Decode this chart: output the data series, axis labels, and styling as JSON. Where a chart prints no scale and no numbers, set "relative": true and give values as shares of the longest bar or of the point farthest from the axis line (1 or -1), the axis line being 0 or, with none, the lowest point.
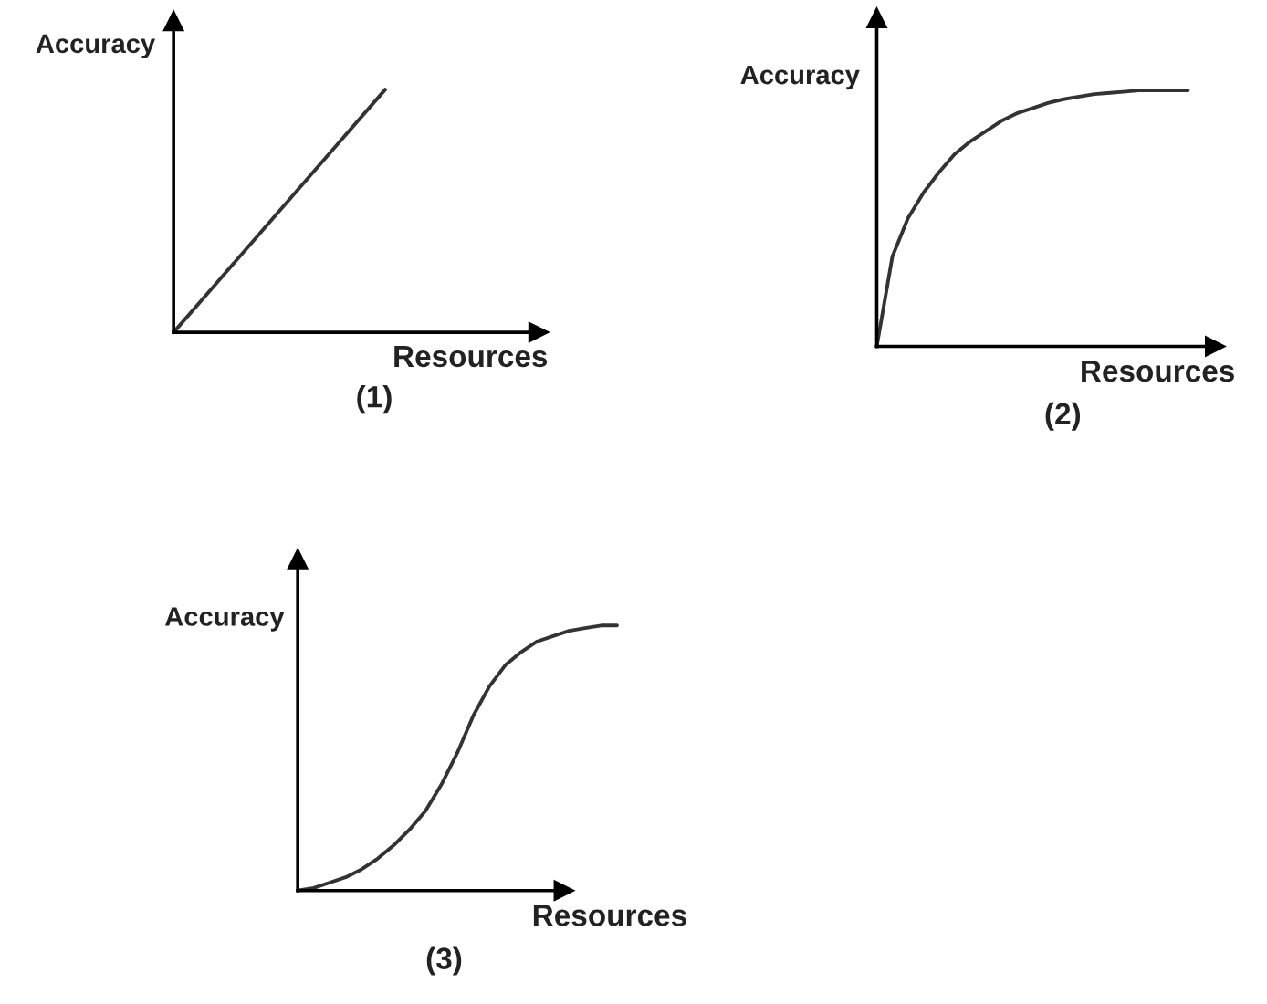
{
  "chart_data": [
    {
      "type": "line",
      "relative": true,
      "xlabel": "Resources",
      "ylabel": "Accuracy",
      "annotations": [
        "(1)"
      ],
      "categories": [
        null,
        null,
        null,
        null,
        null,
        null
      ],
      "series": [
        {
          "color": "#333333",
          "values": [
            0,
            0.2,
            0.4,
            0.6,
            0.8,
            1
          ]
        }
      ]
    },
    {
      "type": "line",
      "relative": true,
      "xlabel": "Resources",
      "ylabel": "Accuracy",
      "annotations": [
        "(2)"
      ],
      "categories": [
        null,
        null,
        null,
        null,
        null,
        null,
        null,
        null,
        null,
        null,
        null,
        null,
        null,
        null,
        null,
        null,
        null,
        null,
        null,
        null,
        null
      ],
      "series": [
        {
          "color": "#333333",
          "values": [
            0,
            0.35,
            0.5,
            0.6,
            0.68,
            0.75,
            0.8,
            0.84,
            0.88,
            0.91,
            0.93,
            0.95,
            0.965,
            0.975,
            0.985,
            0.99,
            0.995,
            1.0,
            1.0,
            1.0,
            1.0
          ]
        }
      ]
    },
    {
      "type": "line",
      "relative": true,
      "xlabel": "Resources",
      "ylabel": "Accuracy",
      "annotations": [
        "(3)"
      ],
      "categories": [
        null,
        null,
        null,
        null,
        null,
        null,
        null,
        null,
        null,
        null,
        null,
        null,
        null,
        null,
        null,
        null,
        null,
        null,
        null,
        null,
        null
      ],
      "series": [
        {
          "color": "#333333",
          "values": [
            0,
            0.01,
            0.03,
            0.05,
            0.08,
            0.12,
            0.17,
            0.23,
            0.3,
            0.4,
            0.52,
            0.66,
            0.77,
            0.85,
            0.9,
            0.94,
            0.96,
            0.98,
            0.99,
            1.0,
            1.0
          ]
        }
      ]
    }
  ]
}
